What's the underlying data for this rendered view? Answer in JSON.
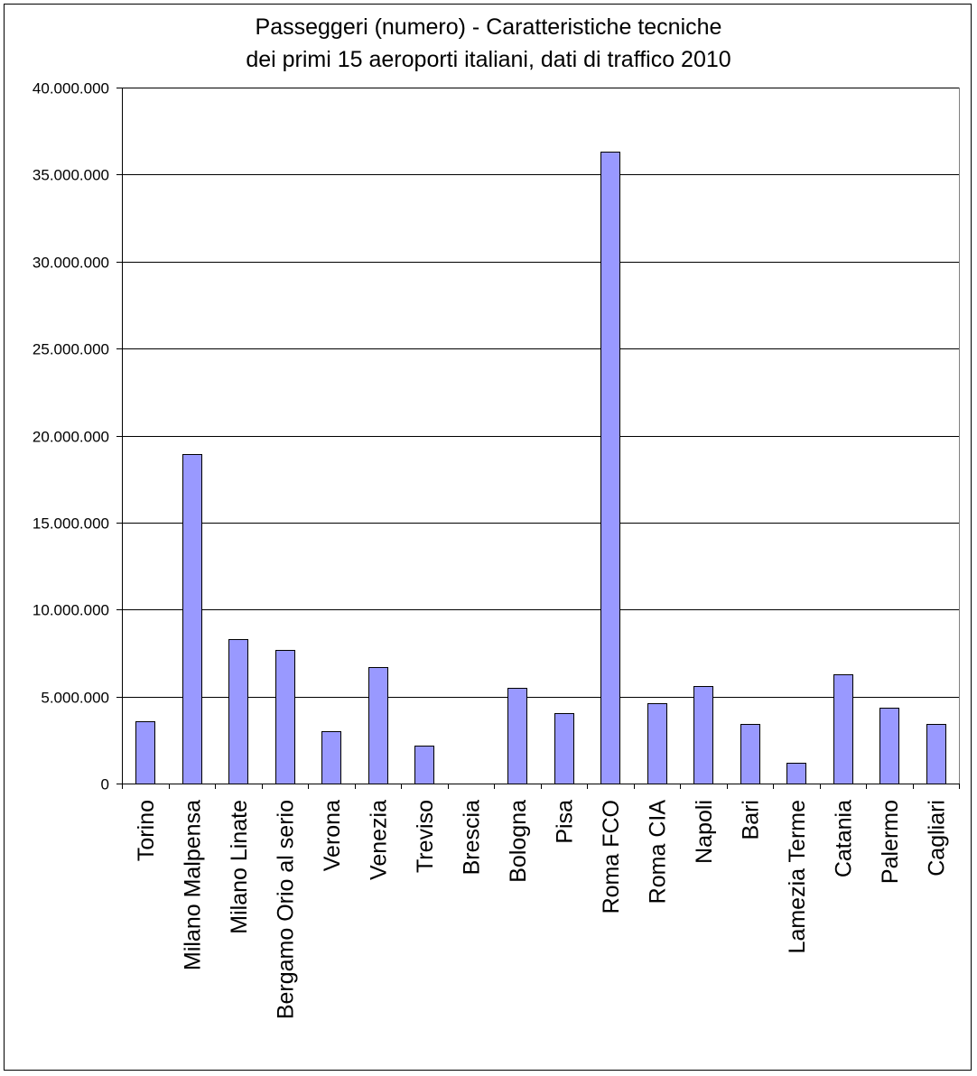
{
  "chart_data": {
    "type": "bar",
    "title": [
      "Passeggeri (numero) - Caratteristiche tecniche",
      "dei primi 15 aeroporti italiani, dati di traffico 2010"
    ],
    "xlabel": "",
    "ylabel": "",
    "ylim": [
      0,
      40000000
    ],
    "yticks": [
      0,
      5000000,
      10000000,
      15000000,
      20000000,
      25000000,
      30000000,
      35000000,
      40000000
    ],
    "ytick_labels": [
      "0",
      "5.000.000",
      "10.000.000",
      "15.000.000",
      "20.000.000",
      "25.000.000",
      "30.000.000",
      "35.000.000",
      "40.000.000"
    ],
    "categories": [
      "Torino",
      "Milano Malpensa",
      "Milano Linate",
      "Bergamo Orio al serio",
      "Verona",
      "Venezia",
      "Treviso",
      "Brescia",
      "Bologna",
      "Pisa",
      "Roma FCO",
      "Roma CIA",
      "Napoli",
      "Bari",
      "Lamezia Terme",
      "Catania",
      "Palermo",
      "Cagliari"
    ],
    "values": [
      3560000,
      18950000,
      8300000,
      7660000,
      3020000,
      6700000,
      2200000,
      0,
      5500000,
      4060000,
      36300000,
      4600000,
      5580000,
      3400000,
      1200000,
      6300000,
      4370000,
      3450000
    ],
    "grid": true,
    "legend": "none",
    "colors": {
      "bar_fill": "#9999ff",
      "bar_stroke": "#000000",
      "grid": "#000000"
    }
  }
}
